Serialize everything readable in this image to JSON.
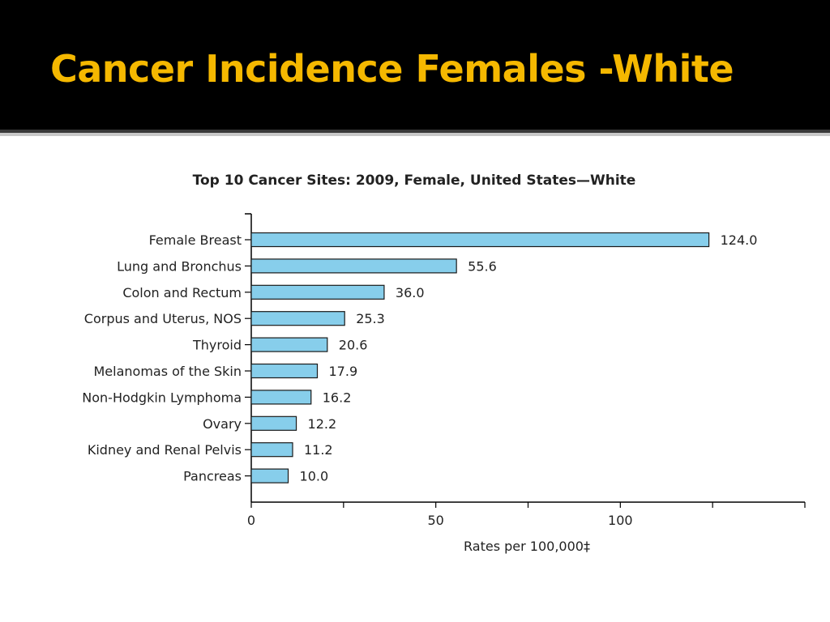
{
  "slide": {
    "title": "Cancer Incidence Females -White"
  },
  "chart_data": {
    "type": "bar",
    "orientation": "horizontal",
    "title": "Top 10 Cancer Sites: 2009, Female, United States—White",
    "xlabel": "Rates per 100,000‡",
    "ylabel": "",
    "categories": [
      "Female Breast",
      "Lung and Bronchus",
      "Colon and Rectum",
      "Corpus and Uterus, NOS",
      "Thyroid",
      "Melanomas of the Skin",
      "Non-Hodgkin Lymphoma",
      "Ovary",
      "Kidney and Renal Pelvis",
      "Pancreas"
    ],
    "values": [
      124.0,
      55.6,
      36.0,
      25.3,
      20.6,
      17.9,
      16.2,
      12.2,
      11.2,
      10.0
    ],
    "value_labels": [
      "124.0",
      "55.6",
      "36.0",
      "25.3",
      "20.6",
      "17.9",
      "16.2",
      "12.2",
      "11.2",
      "10.0"
    ],
    "xlim": [
      0,
      150
    ],
    "x_ticks": [
      0,
      25,
      50,
      75,
      100,
      125,
      150
    ],
    "x_tick_labels": [
      "0",
      "",
      "50",
      "",
      "100",
      "",
      ""
    ],
    "grid": false,
    "colors": {
      "bar_fill": "#87ceeb",
      "bar_stroke": "#1a1a1a",
      "axis": "#000000"
    }
  }
}
